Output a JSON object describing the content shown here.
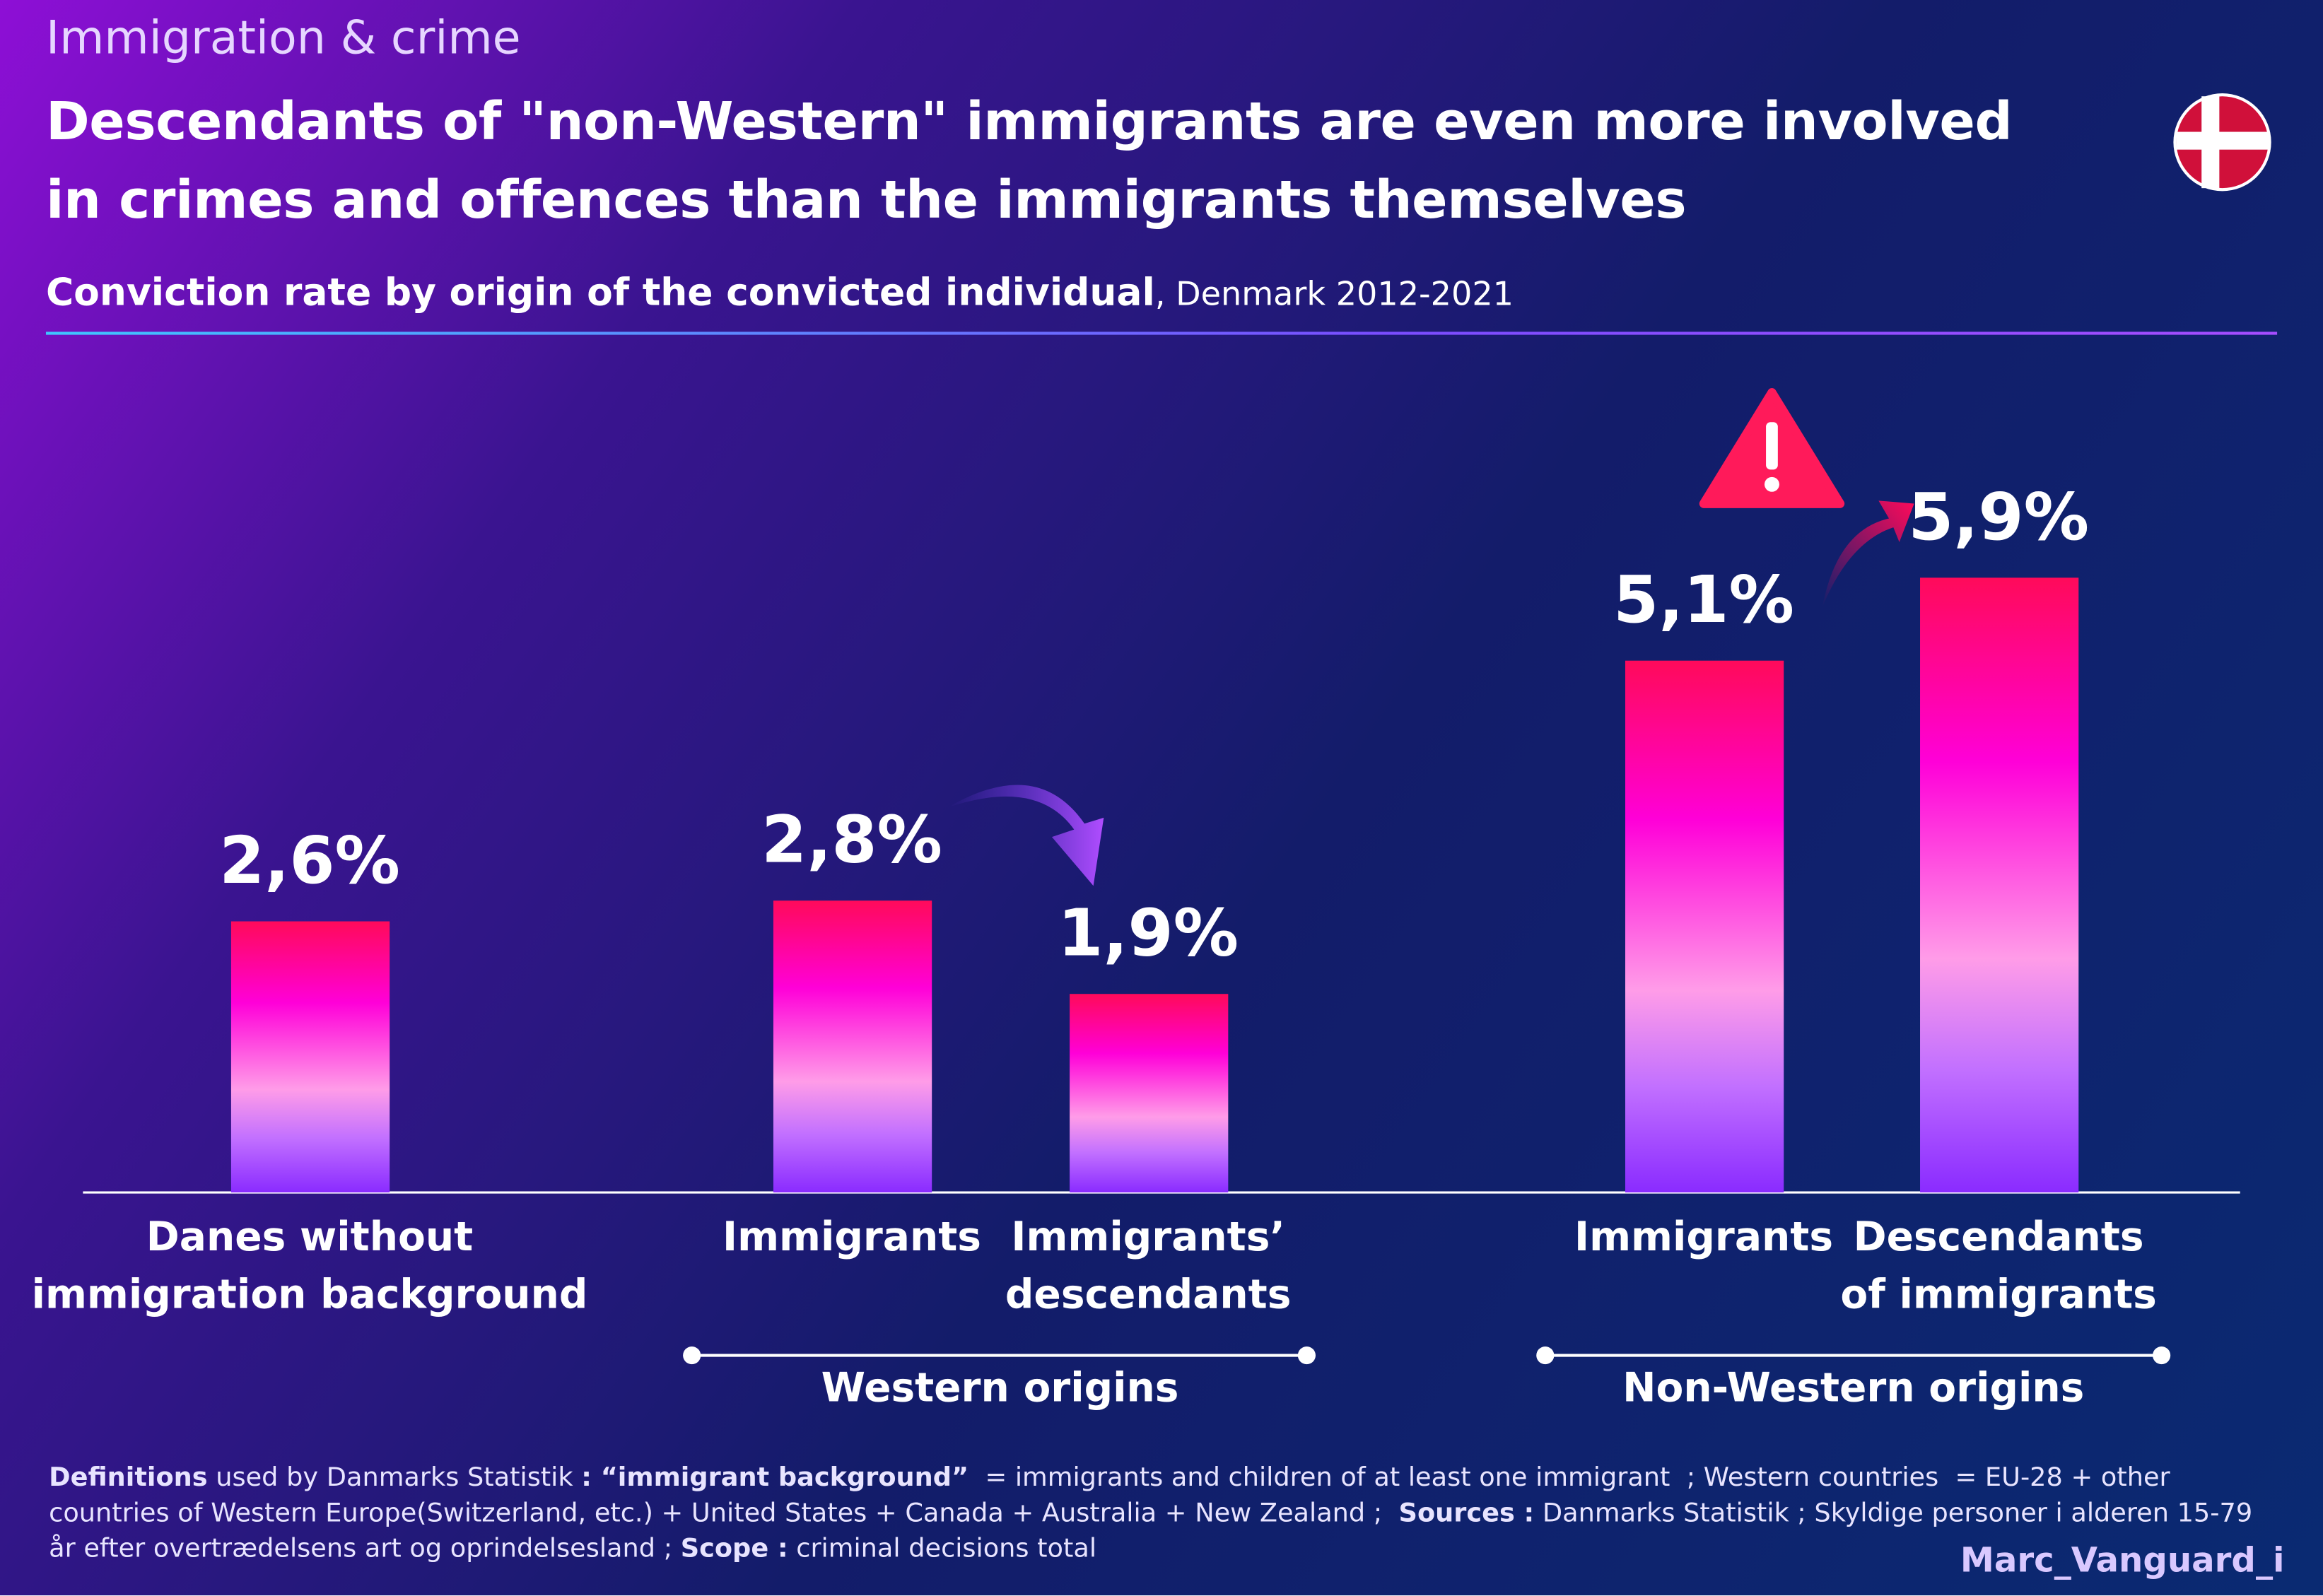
{
  "kicker": "Immigration & crime",
  "chart_data": {
    "type": "bar",
    "title": "Descendants of \"non-Western\" immigrants are even more involved\nin crimes and offences than the immigrants themselves",
    "subtitle": "Conviction rate by origin of the convicted individual",
    "subtitle_detail": ", Denmark 2012-2021",
    "categories": [
      "Danes without\nimmigration background",
      "Immigrants",
      "Immigrants’\ndescendants",
      "Immigrants",
      "Descendants\nof immigrants"
    ],
    "values": [
      2.6,
      2.8,
      1.9,
      5.1,
      5.9
    ],
    "value_labels": [
      "2,6%",
      "2,8%",
      "1,9%",
      "5,1%",
      "5,9%"
    ],
    "groups": [
      "Western origins",
      "Non-Western origins"
    ]
  },
  "footnote": [
    {
      "text": "Definitions",
      "bold": true
    },
    {
      "text": " used by Danmarks Statistik ",
      "bold": false
    },
    {
      "text": ": “immigrant background”",
      "bold": true
    },
    {
      "text": "  = immigrants and children of at least one immigrant  ; Western countries  = EU-28 + other countries of Western Europe(Switzerland, etc.) + United States + Canada + Australia + New Zealand ;  ",
      "bold": false
    },
    {
      "text": "Sources :",
      "bold": true
    },
    {
      "text": " Danmarks Statistik ; Skyldige personer i alderen 15-79 år efter overtrædelsens art og oprindelsesland ; ",
      "bold": false
    },
    {
      "text": "Scope :",
      "bold": true
    },
    {
      "text": " criminal decisions total",
      "bold": false
    }
  ],
  "author": "Marc_Vanguard_i"
}
